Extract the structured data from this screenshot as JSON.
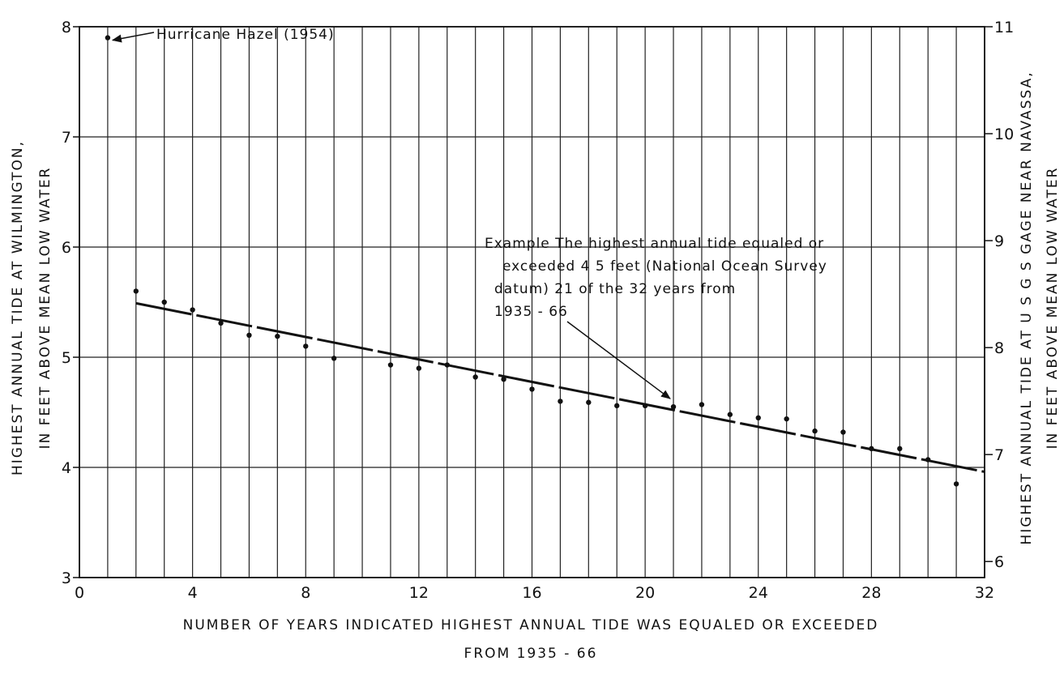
{
  "chart_data": {
    "type": "scatter",
    "xlabel_line1": "NUMBER OF YEARS INDICATED HIGHEST ANNUAL TIDE WAS EQUALED OR EXCEEDED",
    "xlabel_line2": "FROM 1935 - 66",
    "ylabel_left_line1": "HIGHEST ANNUAL TIDE AT WILMINGTON,",
    "ylabel_left_line2": "IN FEET ABOVE MEAN LOW WATER",
    "ylabel_right_line1": "HIGHEST ANNUAL TIDE AT U S G S GAGE NEAR NAVASSA,",
    "ylabel_right_line2": "IN FEET ABOVE MEAN LOW WATER",
    "xlim": [
      0,
      32
    ],
    "ylim_left": [
      3,
      8
    ],
    "ylim_right": [
      5.85,
      11
    ],
    "x_ticks": [
      0,
      4,
      8,
      12,
      16,
      20,
      24,
      28,
      32
    ],
    "y_ticks_left": [
      3,
      4,
      5,
      6,
      7,
      8
    ],
    "y_ticks_right": [
      6,
      7,
      8,
      9,
      10,
      11
    ],
    "grid": true,
    "points": [
      {
        "x": 1,
        "y": 7.9
      },
      {
        "x": 2,
        "y": 5.6
      },
      {
        "x": 3,
        "y": 5.5
      },
      {
        "x": 4,
        "y": 5.43
      },
      {
        "x": 5,
        "y": 5.31
      },
      {
        "x": 6,
        "y": 5.2
      },
      {
        "x": 7,
        "y": 5.19
      },
      {
        "x": 8,
        "y": 5.1
      },
      {
        "x": 9,
        "y": 4.99
      },
      {
        "x": 11,
        "y": 4.93
      },
      {
        "x": 12,
        "y": 4.9
      },
      {
        "x": 13,
        "y": 4.93
      },
      {
        "x": 14,
        "y": 4.82
      },
      {
        "x": 15,
        "y": 4.8
      },
      {
        "x": 16,
        "y": 4.71
      },
      {
        "x": 17,
        "y": 4.6
      },
      {
        "x": 18,
        "y": 4.59
      },
      {
        "x": 19,
        "y": 4.56
      },
      {
        "x": 20,
        "y": 4.56
      },
      {
        "x": 21,
        "y": 4.55
      },
      {
        "x": 22,
        "y": 4.57
      },
      {
        "x": 23,
        "y": 4.48
      },
      {
        "x": 24,
        "y": 4.45
      },
      {
        "x": 25,
        "y": 4.44
      },
      {
        "x": 26,
        "y": 4.33
      },
      {
        "x": 27,
        "y": 4.32
      },
      {
        "x": 28,
        "y": 4.17
      },
      {
        "x": 29,
        "y": 4.17
      },
      {
        "x": 30,
        "y": 4.07
      },
      {
        "x": 31,
        "y": 3.85
      }
    ],
    "trend_line": {
      "x": [
        2,
        32
      ],
      "y": [
        5.49,
        3.96
      ]
    },
    "annotations": {
      "hurricane": {
        "text": "Hurricane Hazel (1954)",
        "x": 1,
        "y": 7.9
      },
      "example": {
        "lines": [
          "Example The highest annual tide equaled or",
          "exceeded 4 5 feet (National Ocean Survey",
          "datum) 21 of the 32 years from",
          "1935 - 66"
        ],
        "target_x": 21,
        "target_y": 4.55
      }
    }
  }
}
